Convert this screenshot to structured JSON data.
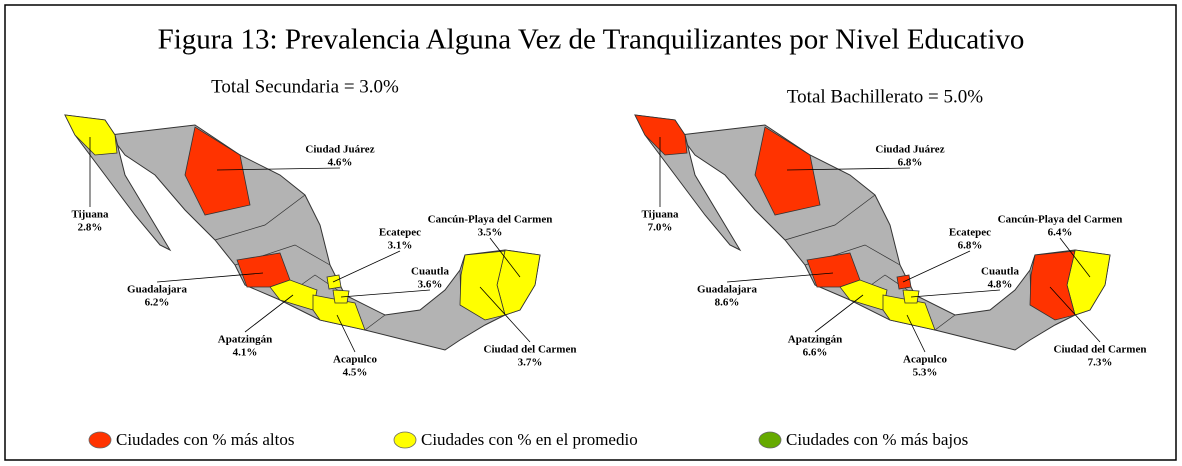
{
  "title": "Figura 13: Prevalencia Alguna Vez de Tranquilizantes por Nivel Educativo",
  "maps": [
    {
      "subtitle": "Total Secundaria = 3.0%",
      "cities": [
        {
          "name": "Tijuana",
          "value": "2.8%",
          "color": "#ffff00"
        },
        {
          "name": "Ciudad Juárez",
          "value": "4.6%",
          "color": "#ff3300"
        },
        {
          "name": "Guadalajara",
          "value": "6.2%",
          "color": "#ff3300"
        },
        {
          "name": "Apatzingán",
          "value": "4.1%",
          "color": "#ffff00"
        },
        {
          "name": "Acapulco",
          "value": "4.5%",
          "color": "#ffff00"
        },
        {
          "name": "Ecatepec",
          "value": "3.1%",
          "color": "#ffff00"
        },
        {
          "name": "Cuautla",
          "value": "3.6%",
          "color": "#ffff00"
        },
        {
          "name": "Cancún-Playa del Carmen",
          "value": "3.5%",
          "color": "#ffff00"
        },
        {
          "name": "Ciudad del Carmen",
          "value": "3.7%",
          "color": "#ffff00"
        }
      ]
    },
    {
      "subtitle": "Total Bachillerato = 5.0%",
      "cities": [
        {
          "name": "Tijuana",
          "value": "7.0%",
          "color": "#ff3300"
        },
        {
          "name": "Ciudad Juárez",
          "value": "6.8%",
          "color": "#ff3300"
        },
        {
          "name": "Guadalajara",
          "value": "8.6%",
          "color": "#ff3300"
        },
        {
          "name": "Apatzingán",
          "value": "6.6%",
          "color": "#ffff00"
        },
        {
          "name": "Acapulco",
          "value": "5.3%",
          "color": "#ffff00"
        },
        {
          "name": "Ecatepec",
          "value": "6.8%",
          "color": "#ff3300"
        },
        {
          "name": "Cuautla",
          "value": "4.8%",
          "color": "#ffff00"
        },
        {
          "name": "Cancún-Playa del Carmen",
          "value": "6.4%",
          "color": "#ffff00"
        },
        {
          "name": "Ciudad del Carmen",
          "value": "7.3%",
          "color": "#ff3300"
        }
      ]
    }
  ],
  "legend": [
    {
      "label": "Ciudades con % más altos",
      "color": "#ff3300"
    },
    {
      "label": "Ciudades con % en el promedio",
      "color": "#ffff00"
    },
    {
      "label": "Ciudades con % más bajos",
      "color": "#66aa00"
    }
  ]
}
